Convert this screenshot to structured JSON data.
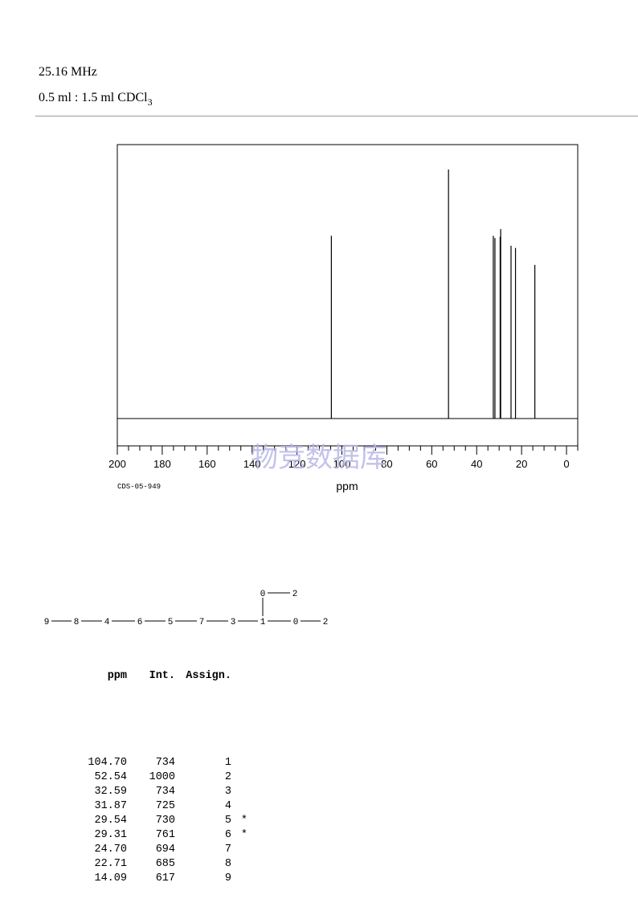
{
  "header": {
    "frequency": "25.16 MHz",
    "solvent_prefix": "0.5 ml : 1.5 ml CDCl",
    "solvent_subscript": "3"
  },
  "chart_data": {
    "type": "line",
    "xlabel": "ppm",
    "xlim": [
      200,
      -5
    ],
    "x_ticks": [
      200,
      180,
      160,
      140,
      120,
      100,
      80,
      60,
      40,
      20,
      0
    ],
    "ylim": [
      0,
      1100
    ],
    "grid": false,
    "code": "CDS-05-949",
    "watermark": "物竞数据库",
    "peaks": [
      {
        "ppm": 104.7,
        "height": 734
      },
      {
        "ppm": 52.54,
        "height": 1000
      },
      {
        "ppm": 32.59,
        "height": 734
      },
      {
        "ppm": 31.87,
        "height": 725
      },
      {
        "ppm": 29.54,
        "height": 730
      },
      {
        "ppm": 29.31,
        "height": 761
      },
      {
        "ppm": 24.7,
        "height": 694
      },
      {
        "ppm": 22.71,
        "height": 685
      },
      {
        "ppm": 14.09,
        "height": 617
      }
    ]
  },
  "structure": {
    "main_chain": [
      "9",
      "8",
      "4",
      "6",
      "5",
      "7",
      "3",
      "1",
      "0",
      "2"
    ],
    "branch": [
      "0",
      "2"
    ]
  },
  "table": {
    "headers": {
      "ppm": "ppm",
      "int": "Int.",
      "assign": "Assign."
    },
    "rows": [
      {
        "ppm": "104.70",
        "int": "734",
        "assign": "1",
        "mark": ""
      },
      {
        "ppm": "52.54",
        "int": "1000",
        "assign": "2",
        "mark": ""
      },
      {
        "ppm": "32.59",
        "int": "734",
        "assign": "3",
        "mark": ""
      },
      {
        "ppm": "31.87",
        "int": "725",
        "assign": "4",
        "mark": ""
      },
      {
        "ppm": "29.54",
        "int": "730",
        "assign": "5",
        "mark": "*"
      },
      {
        "ppm": "29.31",
        "int": "761",
        "assign": "6",
        "mark": "*"
      },
      {
        "ppm": "24.70",
        "int": "694",
        "assign": "7",
        "mark": ""
      },
      {
        "ppm": "22.71",
        "int": "685",
        "assign": "8",
        "mark": ""
      },
      {
        "ppm": "14.09",
        "int": "617",
        "assign": "9",
        "mark": ""
      }
    ]
  }
}
